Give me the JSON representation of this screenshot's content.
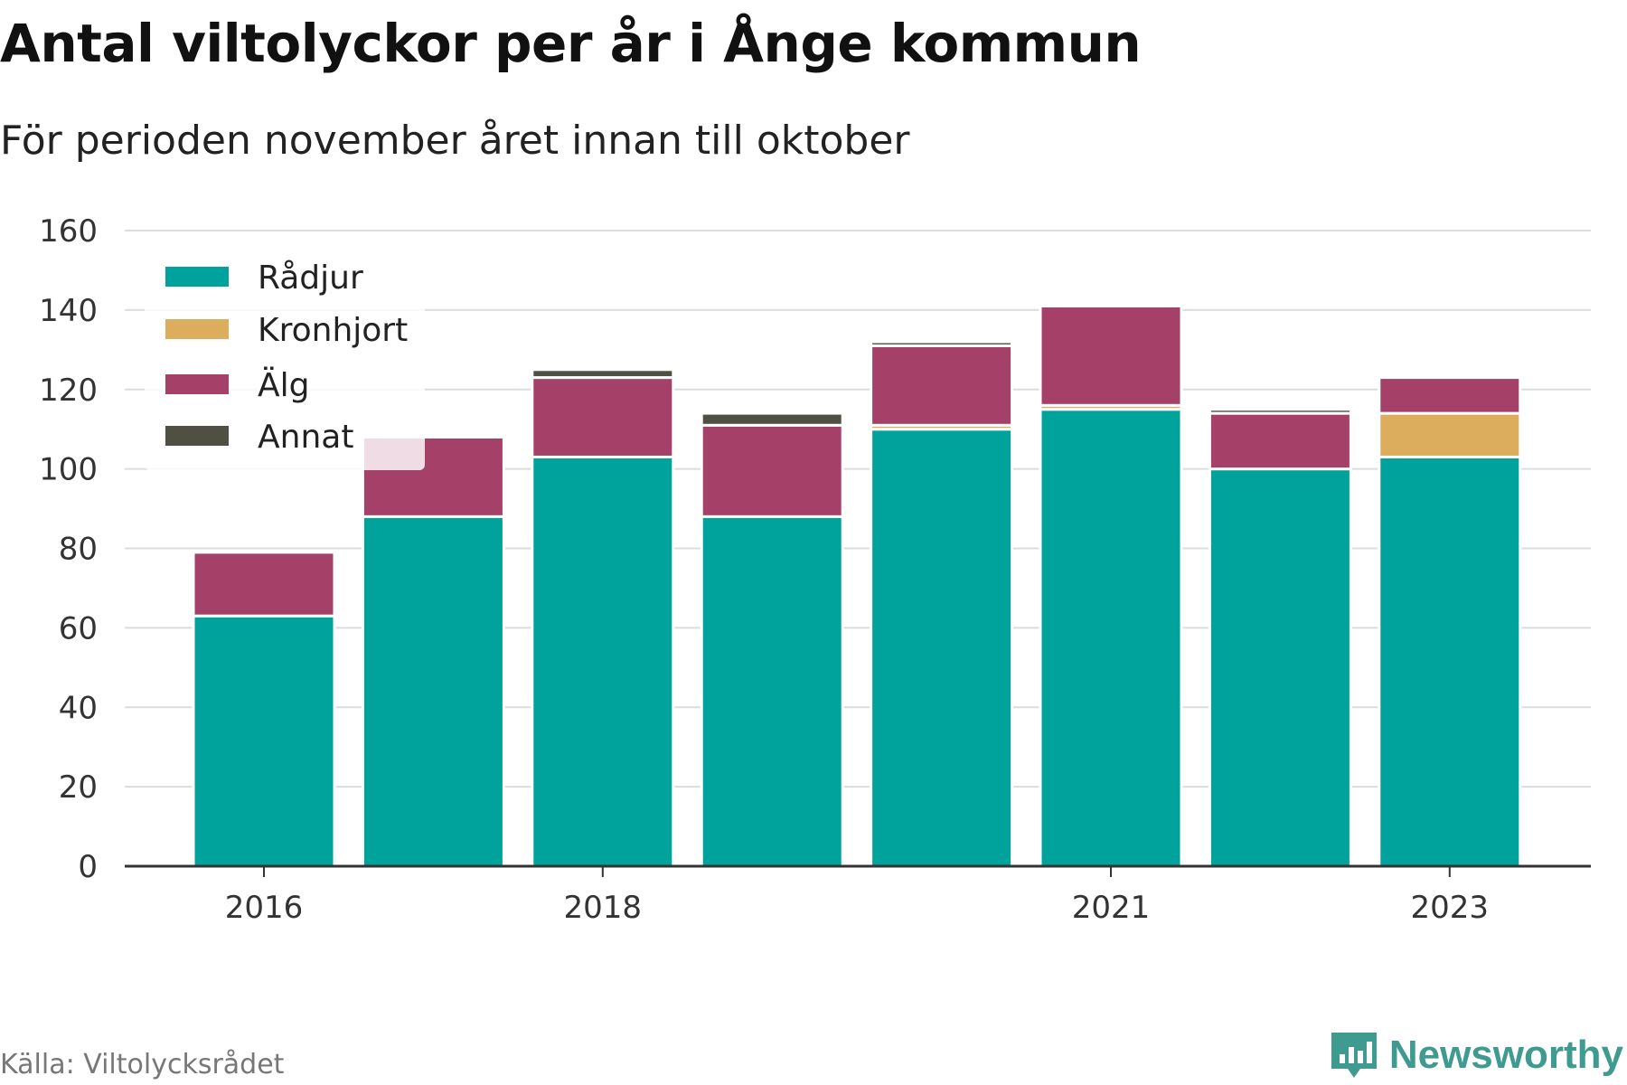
{
  "header": {
    "title": "Antal viltolyckor per år i Ånge kommun",
    "subtitle": "För perioden november året innan till oktober"
  },
  "footer": {
    "source": "Källa: Viltolycksrådet",
    "brand": "Newsworthy",
    "brand_icon": "bar-chart-logo-icon",
    "brand_color": "#3f9a8f"
  },
  "chart_data": {
    "type": "bar",
    "stacked": true,
    "categories": [
      "2016",
      "2017",
      "2018",
      "2019",
      "2020",
      "2021",
      "2022",
      "2023"
    ],
    "x_tick_labels": [
      "2016",
      "",
      "2018",
      "",
      "",
      "2021",
      "",
      "2023"
    ],
    "series": [
      {
        "name": "Rådjur",
        "color": "#00a39b",
        "values": [
          63,
          88,
          103,
          88,
          110,
          115,
          100,
          103
        ]
      },
      {
        "name": "Kronhjort",
        "color": "#dcad5c",
        "values": [
          0,
          0,
          0,
          0,
          1,
          1,
          0,
          11
        ]
      },
      {
        "name": "Älg",
        "color": "#a54168",
        "values": [
          16,
          20,
          20,
          23,
          20,
          25,
          14,
          9
        ]
      },
      {
        "name": "Annat",
        "color": "#4f5042",
        "values": [
          0,
          0,
          2,
          3,
          1,
          0,
          1,
          0
        ]
      }
    ],
    "ylim": [
      0,
      160
    ],
    "yticks": [
      0,
      20,
      40,
      60,
      80,
      100,
      120,
      140,
      160
    ],
    "grid": true,
    "legend_position": "top-left"
  }
}
